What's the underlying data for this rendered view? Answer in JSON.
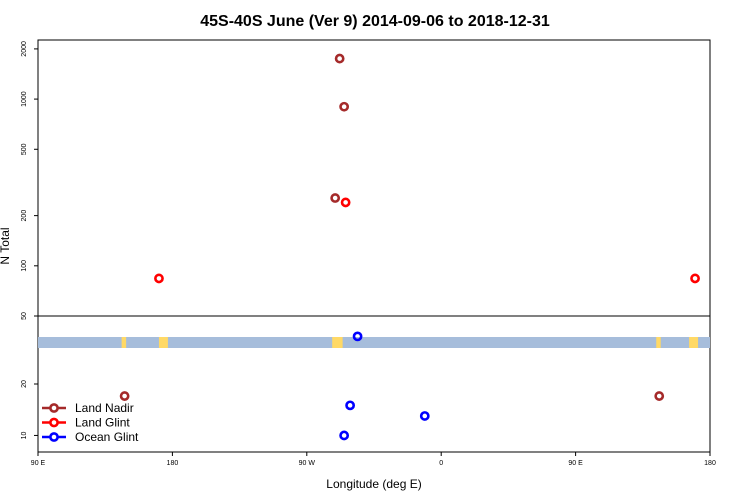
{
  "chart_data": {
    "type": "scatter",
    "title": "45S-40S June (Ver 9)   2014-09-06 to 2018-12-31",
    "xlabel": "Longitude (deg E)",
    "ylabel": "N Total",
    "x_ticks": [
      {
        "value": 90,
        "label": "90 E"
      },
      {
        "value": 180,
        "label": "180"
      },
      {
        "value": 270,
        "label": "90 W"
      },
      {
        "value": 360,
        "label": "0"
      },
      {
        "value": 450,
        "label": "90 E"
      },
      {
        "value": 540,
        "label": "180"
      }
    ],
    "xlim": [
      90,
      540
    ],
    "upper_panel": {
      "scale": "log",
      "ylim": [
        50,
        2200
      ],
      "y_ticks": [
        {
          "value": 50,
          "label": "50"
        },
        {
          "value": 100,
          "label": "100"
        },
        {
          "value": 200,
          "label": "200"
        },
        {
          "value": 500,
          "label": "500"
        },
        {
          "value": 1000,
          "label": "1000"
        },
        {
          "value": 2000,
          "label": "2000"
        }
      ]
    },
    "lower_panel": {
      "scale": "log",
      "ylim": [
        8,
        50
      ],
      "y_ticks": [
        {
          "value": 10,
          "label": "10"
        },
        {
          "value": 20,
          "label": "20"
        }
      ]
    },
    "legend_position": "bottom-left",
    "series": [
      {
        "name": "Land Nadir",
        "color": "#a52a2a",
        "points": [
          {
            "x": 148,
            "y": 17
          },
          {
            "x": 292,
            "y": 1750
          },
          {
            "x": 295,
            "y": 900
          },
          {
            "x": 289,
            "y": 255
          },
          {
            "x": 506,
            "y": 17
          }
        ]
      },
      {
        "name": "Land Glint",
        "color": "#ff0000",
        "points": [
          {
            "x": 171,
            "y": 84
          },
          {
            "x": 296,
            "y": 240
          },
          {
            "x": 530,
            "y": 84
          }
        ]
      },
      {
        "name": "Ocean Glint",
        "color": "#0000ff",
        "points": [
          {
            "x": 304,
            "y": 38
          },
          {
            "x": 299,
            "y": 15
          },
          {
            "x": 349,
            "y": 13
          },
          {
            "x": 295,
            "y": 10
          }
        ]
      }
    ],
    "map_strip": {
      "ocean_color": "#a6bddb",
      "land_color": "#ffd966",
      "land_segments": [
        [
          146,
          149
        ],
        [
          171,
          177
        ],
        [
          287,
          294
        ],
        [
          504,
          507
        ],
        [
          526,
          532
        ]
      ]
    }
  }
}
